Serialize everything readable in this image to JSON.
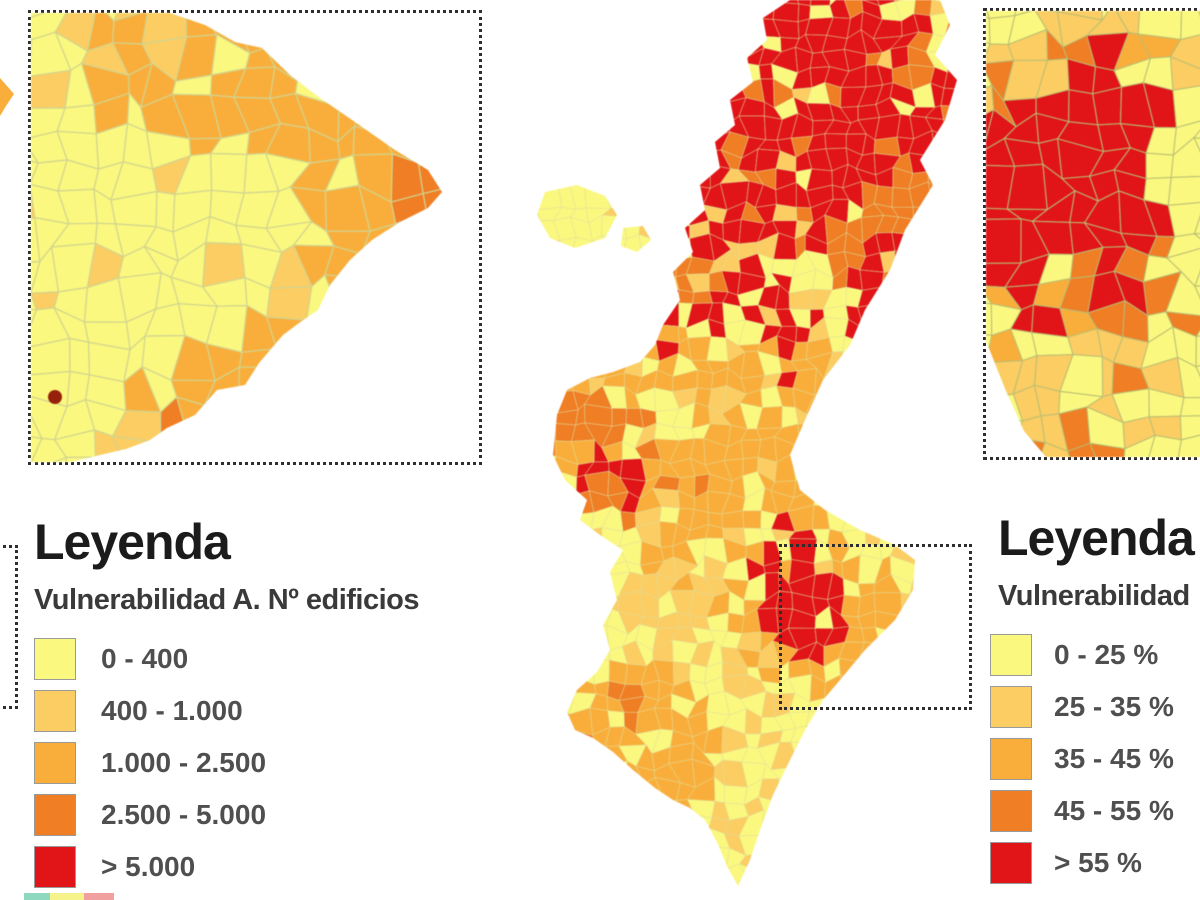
{
  "palette": {
    "class_colors": [
      "#FAF87F",
      "#FBCD63",
      "#F9AE3B",
      "#EF7E25",
      "#E11518"
    ],
    "dark_red_dot": "#97200A",
    "municipal_border_light": "#D2D48E",
    "municipal_border_main": "#E0DE9A",
    "municipal_border_right": "#B9BD72",
    "inset_border": "#2E2E2E"
  },
  "legend_left": {
    "title": "Leyenda",
    "subtitle": "Vulnerabilidad A. Nº edificios",
    "items": [
      {
        "label": "0 - 400",
        "color": "#FAF87F"
      },
      {
        "label": "400 - 1.000",
        "color": "#FBCD63"
      },
      {
        "label": "1.000 - 2.500",
        "color": "#F9AE3B"
      },
      {
        "label": "2.500 - 5.000",
        "color": "#EF7E25"
      },
      {
        "label": "> 5.000",
        "color": "#E11518"
      }
    ]
  },
  "legend_right": {
    "title": "Leyenda",
    "subtitle": "Vulnerabilidad",
    "items": [
      {
        "label": "0 - 25 %",
        "color": "#FAF87F"
      },
      {
        "label": "25 - 35 %",
        "color": "#FBCD63"
      },
      {
        "label": "35 - 45 %",
        "color": "#F9AE3B"
      },
      {
        "label": "45 - 55 %",
        "color": "#EF7E25"
      },
      {
        "label": "> 55 %",
        "color": "#E11518"
      }
    ]
  }
}
